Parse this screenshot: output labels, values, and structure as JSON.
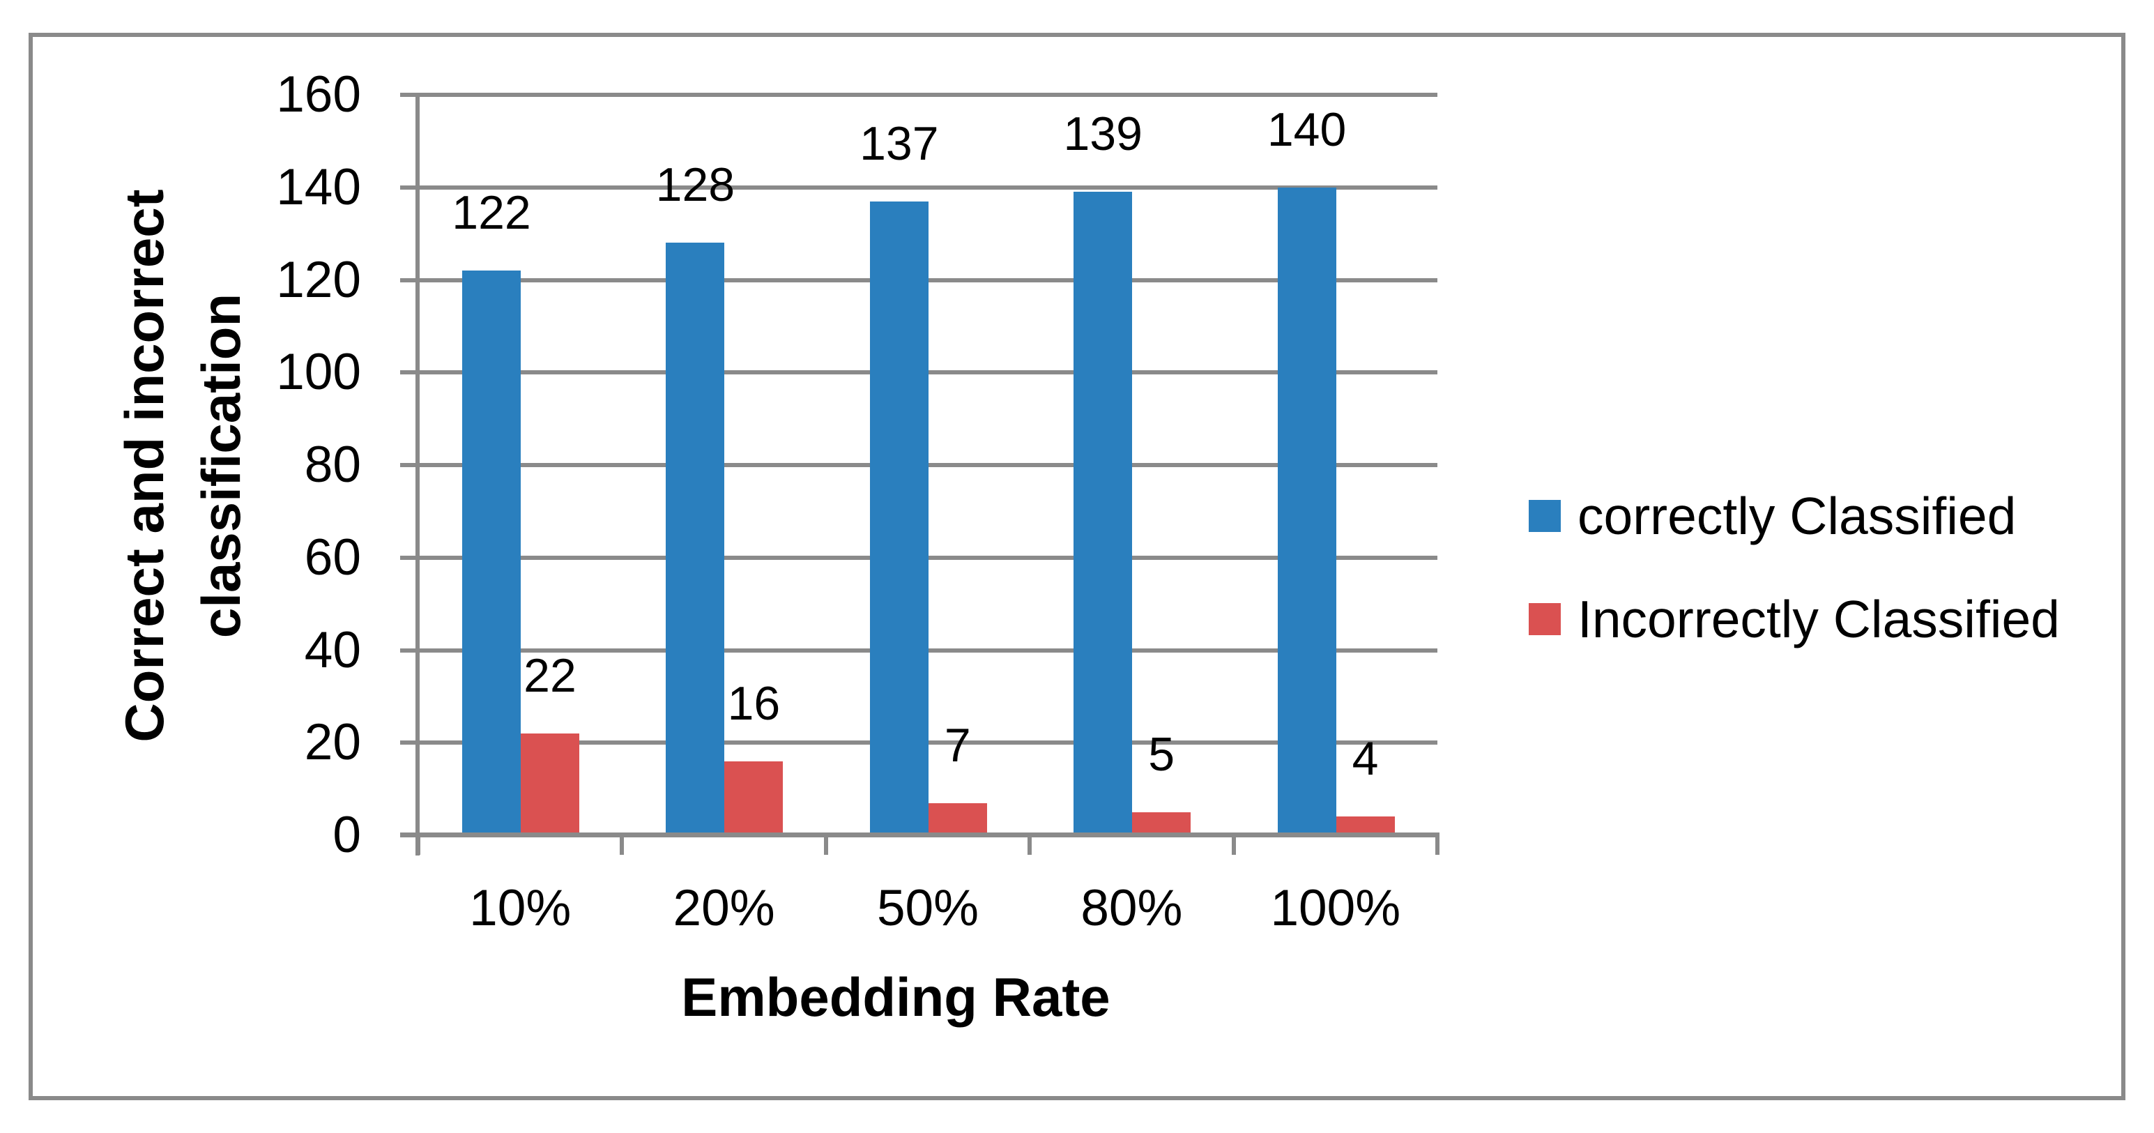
{
  "figure": {
    "background": "#ffffff",
    "border_color": "#8a8a8a"
  },
  "chart_data": {
    "type": "bar",
    "title": "",
    "categories": [
      "10%",
      "20%",
      "50%",
      "80%",
      "100%"
    ],
    "series": [
      {
        "name": "correctly Classified",
        "color": "#2a7fbe",
        "values": [
          122,
          128,
          137,
          139,
          140
        ]
      },
      {
        "name": "Incorrectly Classified",
        "color": "#da5151",
        "values": [
          22,
          16,
          7,
          5,
          4
        ]
      }
    ],
    "data_labels": {
      "correctly": [
        "122",
        "128",
        "137",
        "139",
        "140"
      ],
      "incorrectly": [
        "22",
        "16",
        "7",
        "5",
        "4"
      ]
    },
    "xlabel": "Embedding Rate",
    "ylabel": "Correct and incorrect classification",
    "ylabel_lines": [
      "Correct and incorrect",
      "classification"
    ],
    "ylim": [
      0,
      160
    ],
    "ytick_step": 20,
    "yticks": [
      "0",
      "20",
      "40",
      "60",
      "80",
      "100",
      "120",
      "140",
      "160"
    ],
    "grid": true,
    "gridline_color": "#8a8a8a",
    "axis_color": "#8a8a8a",
    "legend_position": "right",
    "data_labels_enabled": true
  }
}
